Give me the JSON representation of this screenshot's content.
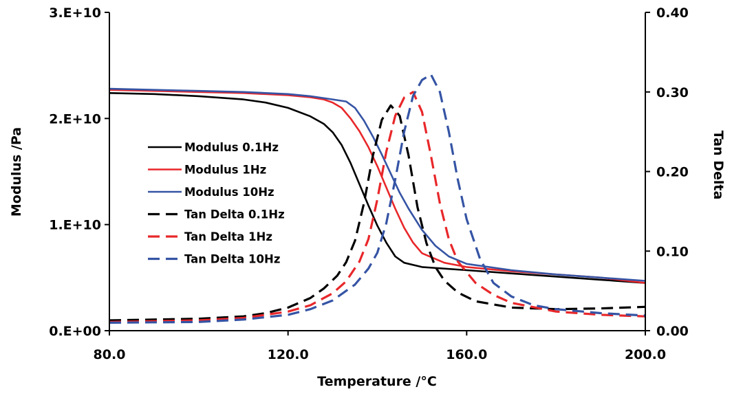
{
  "chart_data": {
    "type": "line",
    "title": "",
    "xlabel": "Temperature /°C",
    "ylabel_left": "Modulus /Pa",
    "ylabel_right": "Tan Delta",
    "xlim": [
      80,
      200
    ],
    "ylim_left": [
      0,
      30000000000
    ],
    "ylim_right": [
      0,
      0.4
    ],
    "x_ticks": [
      80,
      120,
      160,
      200
    ],
    "x_tick_labels": [
      "80.0",
      "120.0",
      "160.0",
      "200.0"
    ],
    "y_left_ticks": [
      0,
      10000000000,
      20000000000,
      30000000000
    ],
    "y_left_tick_labels": [
      "0.E+00",
      "1.E+10",
      "2.E+10",
      "3.E+10"
    ],
    "y_right_ticks": [
      0,
      0.1,
      0.2,
      0.3,
      0.4
    ],
    "y_right_tick_labels": [
      "0.00",
      "0.10",
      "0.20",
      "0.30",
      "0.40"
    ],
    "grid": false,
    "legend_position": "center-left",
    "series": [
      {
        "name": "Modulus 0.1Hz",
        "axis": "left",
        "color": "#000000",
        "dash": "solid",
        "x": [
          80,
          90,
          100,
          110,
          115,
          120,
          125,
          128,
          130,
          132,
          134,
          136,
          138,
          140,
          142,
          144,
          146,
          150,
          160,
          170,
          180,
          190,
          200
        ],
        "y": [
          22400000000,
          22300000000,
          22100000000,
          21800000000,
          21500000000,
          21000000000,
          20200000000,
          19500000000,
          18700000000,
          17500000000,
          15800000000,
          13800000000,
          11800000000,
          9900000000,
          8300000000,
          7000000000,
          6400000000,
          6000000000,
          5700000000,
          5400000000,
          5100000000,
          4800000000,
          4500000000
        ]
      },
      {
        "name": "Modulus 1Hz",
        "axis": "left",
        "color": "#e8272a",
        "dash": "solid",
        "x": [
          80,
          90,
          100,
          110,
          120,
          125,
          128,
          130,
          132,
          134,
          136,
          138,
          140,
          142,
          144,
          146,
          148,
          150,
          155,
          160,
          170,
          180,
          190,
          200
        ],
        "y": [
          22700000000,
          22600000000,
          22500000000,
          22400000000,
          22200000000,
          22000000000,
          21800000000,
          21500000000,
          21000000000,
          20000000000,
          18800000000,
          17300000000,
          15500000000,
          13500000000,
          11500000000,
          9700000000,
          8300000000,
          7300000000,
          6400000000,
          6000000000,
          5600000000,
          5300000000,
          5000000000,
          4500000000
        ]
      },
      {
        "name": "Modulus 10Hz",
        "axis": "left",
        "color": "#3554a4",
        "dash": "solid",
        "x": [
          80,
          90,
          100,
          110,
          120,
          125,
          130,
          133,
          135,
          137,
          139,
          141,
          143,
          145,
          147,
          150,
          153,
          156,
          160,
          170,
          180,
          190,
          200
        ],
        "y": [
          22800000000,
          22700000000,
          22600000000,
          22500000000,
          22300000000,
          22100000000,
          21800000000,
          21600000000,
          21000000000,
          19800000000,
          18300000000,
          16600000000,
          14800000000,
          13000000000,
          11500000000,
          9500000000,
          8000000000,
          7000000000,
          6300000000,
          5700000000,
          5300000000,
          5000000000,
          4700000000
        ]
      },
      {
        "name": "Tan Delta 0.1Hz",
        "axis": "right",
        "color": "#000000",
        "dash": "dashed",
        "x": [
          80,
          100,
          110,
          115,
          120,
          125,
          128,
          131,
          133,
          135,
          137,
          139,
          141,
          143,
          145,
          147,
          149,
          151,
          153,
          155,
          158,
          162,
          170,
          180,
          190,
          200
        ],
        "y": [
          0.013,
          0.015,
          0.018,
          0.022,
          0.029,
          0.041,
          0.053,
          0.069,
          0.086,
          0.113,
          0.16,
          0.22,
          0.265,
          0.283,
          0.27,
          0.22,
          0.155,
          0.11,
          0.08,
          0.063,
          0.048,
          0.037,
          0.029,
          0.027,
          0.028,
          0.03
        ]
      },
      {
        "name": "Tan Delta 1Hz",
        "axis": "right",
        "color": "#e8272a",
        "dash": "dashed",
        "x": [
          80,
          100,
          110,
          120,
          125,
          130,
          133,
          136,
          138,
          140,
          142,
          144,
          146,
          148,
          150,
          152,
          154,
          156,
          158,
          162,
          166,
          170,
          180,
          190,
          200
        ],
        "y": [
          0.011,
          0.013,
          0.016,
          0.024,
          0.032,
          0.047,
          0.062,
          0.087,
          0.115,
          0.165,
          0.225,
          0.27,
          0.293,
          0.3,
          0.275,
          0.22,
          0.16,
          0.115,
          0.087,
          0.06,
          0.045,
          0.035,
          0.024,
          0.02,
          0.018
        ]
      },
      {
        "name": "Tan Delta 10Hz",
        "axis": "right",
        "color": "#3554a4",
        "dash": "dashed",
        "x": [
          80,
          100,
          110,
          120,
          125,
          130,
          135,
          138,
          140,
          142,
          144,
          146,
          148,
          150,
          152,
          154,
          156,
          158,
          160,
          163,
          166,
          170,
          175,
          180,
          190,
          200
        ],
        "y": [
          0.01,
          0.011,
          0.014,
          0.02,
          0.027,
          0.038,
          0.058,
          0.078,
          0.098,
          0.135,
          0.19,
          0.25,
          0.295,
          0.315,
          0.322,
          0.3,
          0.25,
          0.19,
          0.14,
          0.09,
          0.06,
          0.043,
          0.032,
          0.027,
          0.022,
          0.019
        ]
      }
    ]
  }
}
